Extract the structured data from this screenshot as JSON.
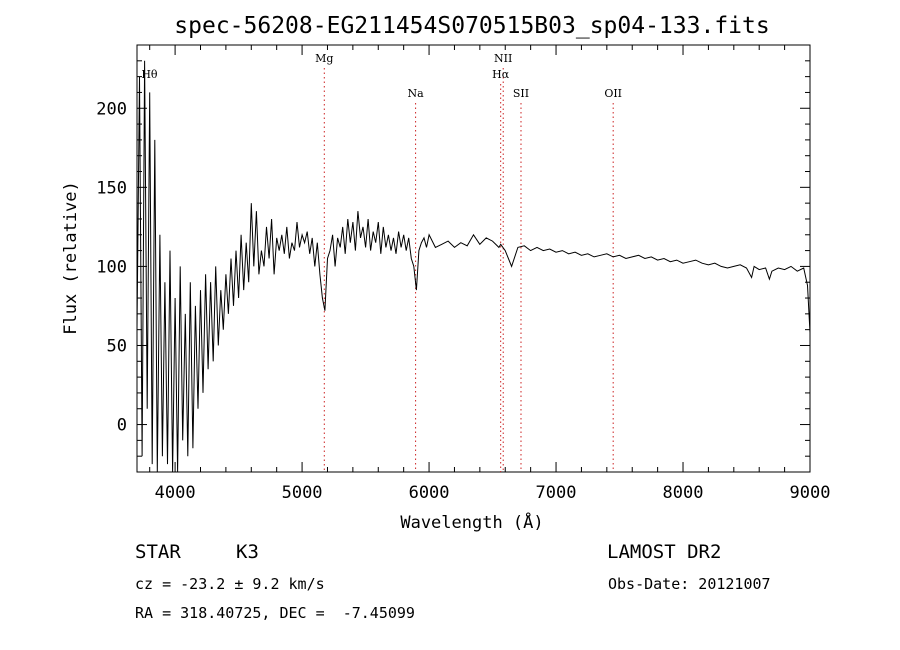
{
  "chart_data": {
    "type": "line",
    "title": "spec-56208-EG211454S070515B03_sp04-133.fits",
    "xlabel": "Wavelength (Å)",
    "ylabel": "Flux (relative)",
    "xlim": [
      3700,
      9000
    ],
    "ylim": [
      -30,
      240
    ],
    "x_ticks": [
      4000,
      5000,
      6000,
      7000,
      8000,
      9000
    ],
    "y_ticks": [
      0,
      50,
      100,
      150,
      200
    ],
    "grid": false,
    "series": [
      {
        "x": [
          3700,
          3720,
          3740,
          3760,
          3780,
          3800,
          3820,
          3840,
          3860,
          3880,
          3900,
          3920,
          3940,
          3960,
          3980,
          4000,
          4020,
          4040,
          4060,
          4080,
          4100,
          4120,
          4140,
          4160,
          4180,
          4200,
          4220,
          4240,
          4260,
          4280,
          4300,
          4320,
          4340,
          4360,
          4380,
          4400,
          4420,
          4440,
          4460,
          4480,
          4500,
          4520,
          4540,
          4560,
          4580,
          4600,
          4620,
          4640,
          4660,
          4680,
          4700,
          4720,
          4740,
          4760,
          4780,
          4800,
          4820,
          4840,
          4860,
          4880,
          4900,
          4920,
          4940,
          4960,
          4980,
          5000,
          5020,
          5040,
          5060,
          5080,
          5100,
          5120,
          5140,
          5160,
          5180,
          5200,
          5220,
          5240,
          5260,
          5280,
          5300,
          5320,
          5340,
          5360,
          5380,
          5400,
          5420,
          5440,
          5460,
          5480,
          5500,
          5520,
          5540,
          5560,
          5580,
          5600,
          5620,
          5640,
          5660,
          5680,
          5700,
          5720,
          5740,
          5760,
          5780,
          5800,
          5820,
          5840,
          5860,
          5880,
          5900,
          5920,
          5940,
          5960,
          5980,
          6000,
          6050,
          6100,
          6150,
          6200,
          6250,
          6300,
          6350,
          6400,
          6450,
          6500,
          6550,
          6564,
          6600,
          6650,
          6700,
          6750,
          6800,
          6850,
          6900,
          6950,
          7000,
          7050,
          7100,
          7150,
          7200,
          7250,
          7300,
          7350,
          7400,
          7450,
          7500,
          7550,
          7600,
          7650,
          7700,
          7750,
          7800,
          7850,
          7900,
          7950,
          8000,
          8050,
          8100,
          8150,
          8200,
          8250,
          8300,
          8350,
          8400,
          8450,
          8500,
          8540,
          8560,
          8600,
          8650,
          8680,
          8700,
          8750,
          8800,
          8850,
          8900,
          8950,
          8980,
          9000
        ],
        "y": [
          60,
          220,
          -20,
          230,
          10,
          210,
          -25,
          180,
          -30,
          120,
          -20,
          90,
          -25,
          110,
          -30,
          80,
          -30,
          100,
          -10,
          70,
          -20,
          90,
          -15,
          75,
          10,
          85,
          20,
          95,
          35,
          90,
          40,
          100,
          50,
          85,
          60,
          95,
          70,
          105,
          75,
          110,
          80,
          120,
          85,
          115,
          90,
          140,
          100,
          135,
          95,
          110,
          100,
          125,
          105,
          130,
          95,
          118,
          110,
          120,
          108,
          125,
          105,
          115,
          110,
          128,
          112,
          120,
          115,
          122,
          108,
          118,
          100,
          115,
          95,
          80,
          72,
          105,
          110,
          120,
          100,
          118,
          112,
          125,
          108,
          130,
          115,
          128,
          110,
          135,
          118,
          125,
          112,
          130,
          110,
          122,
          115,
          128,
          108,
          125,
          112,
          120,
          110,
          118,
          108,
          122,
          112,
          120,
          110,
          118,
          105,
          100,
          85,
          110,
          115,
          118,
          112,
          120,
          112,
          114,
          116,
          112,
          115,
          113,
          120,
          114,
          118,
          116,
          112,
          114,
          110,
          100,
          112,
          113,
          110,
          112,
          110,
          111,
          109,
          110,
          108,
          109,
          107,
          108,
          106,
          107,
          108,
          106,
          107,
          105,
          106,
          107,
          105,
          106,
          104,
          105,
          103,
          104,
          102,
          103,
          104,
          102,
          101,
          102,
          100,
          99,
          100,
          101,
          99,
          93,
          100,
          98,
          99,
          92,
          97,
          99,
          98,
          100,
          97,
          99,
          88,
          58
        ]
      }
    ],
    "annotations": [
      {
        "label": "Hθ",
        "x": 3798,
        "row": 1,
        "dotted": false
      },
      {
        "label": "Mg",
        "x": 5175,
        "row": 0,
        "dotted": true
      },
      {
        "label": "Na",
        "x": 5894,
        "row": 2,
        "dotted": true
      },
      {
        "label": "NII",
        "x": 6584,
        "row": 0,
        "dotted": true
      },
      {
        "label": "Hα",
        "x": 6564,
        "row": 1,
        "dotted": true
      },
      {
        "label": "SII",
        "x": 6724,
        "row": 2,
        "dotted": true
      },
      {
        "label": "OII",
        "x": 7450,
        "row": 2,
        "dotted": true
      }
    ],
    "dotted_line_color": "#cc2222"
  },
  "info": {
    "object_class": "STAR",
    "subclass": "K3",
    "survey": "LAMOST DR2",
    "cz": "cz = -23.2 ± 9.2 km/s",
    "obs_date": "Obs-Date: 20121007",
    "coords": "RA = 318.40725, DEC =  -7.45099"
  }
}
